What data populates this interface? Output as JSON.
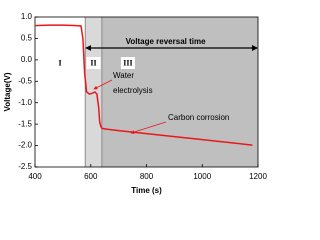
{
  "chart_data": {
    "type": "line",
    "x_label": "Time (s)",
    "y_label": "Voltage(V)",
    "xlim": [
      400,
      1200
    ],
    "xticks": [
      400,
      600,
      800,
      1000,
      1200
    ],
    "ylim": [
      -2.5,
      1
    ],
    "yticks": [
      {
        "value": 1,
        "label": "1.0"
      },
      0.5,
      {
        "value": 0,
        "label": "0.0"
      },
      -0.5,
      {
        "value": -1,
        "label": "-1.0"
      },
      -1.5,
      {
        "value": -2,
        "label": "-2.0"
      },
      -2.5
    ],
    "regions": [
      {
        "label": "I",
        "from": 400,
        "to": 580,
        "color": "#ffffff"
      },
      {
        "label": "II",
        "from": 580,
        "to": 640,
        "color": "#d9d9d9"
      },
      {
        "label": "III",
        "from": 640,
        "to": 1200,
        "color": "#bfbfbf"
      }
    ],
    "span_label": "Voltage reversal time",
    "annotations": [
      [
        "Water",
        "electrolysis"
      ],
      [
        "Carbon corrosion"
      ]
    ],
    "series": [
      {
        "color": "#e8181b",
        "x": [
          400,
          450,
          500,
          550,
          565,
          572,
          578,
          585,
          595,
          605,
          615,
          622,
          628,
          632,
          636,
          640,
          660,
          700,
          800,
          900,
          1000,
          1100,
          1180
        ],
        "values": [
          0.8,
          0.81,
          0.81,
          0.8,
          0.79,
          0.5,
          -0.3,
          -0.75,
          -0.8,
          -0.78,
          -0.75,
          -0.8,
          -1.1,
          -1.45,
          -1.55,
          -1.6,
          -1.62,
          -1.65,
          -1.72,
          -1.79,
          -1.86,
          -1.93,
          -1.99
        ]
      }
    ]
  }
}
